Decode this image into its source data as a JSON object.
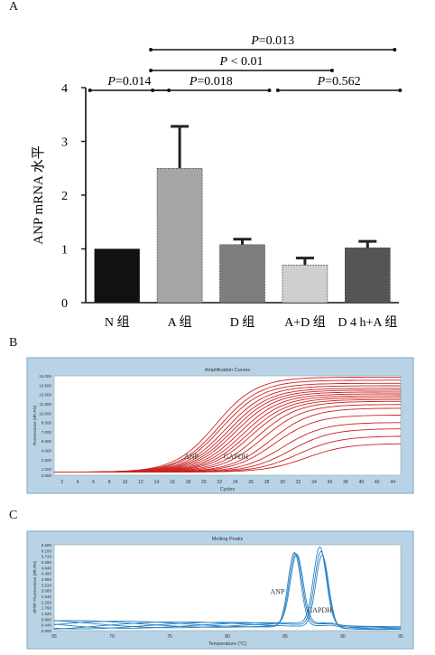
{
  "panels": {
    "a": "A",
    "b": "B",
    "c": "C"
  },
  "chart_data": [
    {
      "type": "bar",
      "ylabel": "ANP mRNA 水平",
      "xlabel": "",
      "title": "",
      "ylim": [
        0,
        4
      ],
      "yticks": [
        "0",
        "1",
        "2",
        "3",
        "4"
      ],
      "categories": [
        "N 组",
        "A 组",
        "D 组",
        "A+D 组",
        "D 4 h+A 组"
      ],
      "values": [
        1.0,
        2.5,
        1.08,
        0.7,
        1.02
      ],
      "errors": [
        0,
        0.78,
        0.1,
        0.13,
        0.12
      ],
      "colors": [
        "#111111",
        "#a6a6a6",
        "#7d7d7d",
        "#cfcfcf",
        "#555555"
      ],
      "comparisons": [
        {
          "pre": "P",
          "text": "=0.013",
          "from": 1,
          "to": 4
        },
        {
          "pre": "P",
          "text": " < 0.01",
          "from": 1,
          "to": 3
        },
        {
          "pre": "P",
          "text": "=0.014",
          "from": 0,
          "to": 1
        },
        {
          "pre": "P",
          "text": "=0.018",
          "from": 1,
          "to": 2
        },
        {
          "pre": "P",
          "text": "=0.562",
          "from": 3,
          "to": 4
        }
      ]
    },
    {
      "type": "line",
      "title": "Amplification Curves",
      "xlabel": "Cycles",
      "ylabel": "Fluorescence (dR.RN)",
      "xlim": [
        1,
        45
      ],
      "ylim": [
        0,
        16000
      ],
      "xticks": [
        "2",
        "4",
        "6",
        "8",
        "10",
        "12",
        "14",
        "16",
        "18",
        "20",
        "22",
        "24",
        "26",
        "28",
        "30",
        "32",
        "34",
        "36",
        "38",
        "40",
        "42",
        "44"
      ],
      "yticks": [
        "0.000",
        "1.000",
        "2.500",
        "4.000",
        "5.500",
        "7.000",
        "8.500",
        "10.000",
        "11.500",
        "13.000",
        "14.500",
        "16.000"
      ],
      "annotations": [
        "ANP",
        "GAPDH"
      ],
      "series_color": "#cc2222",
      "curves": [
        {
          "mid": 21.5,
          "plateau": 15300
        },
        {
          "mid": 22.0,
          "plateau": 14800
        },
        {
          "mid": 22.3,
          "plateau": 14300
        },
        {
          "mid": 22.8,
          "plateau": 13900
        },
        {
          "mid": 23.2,
          "plateau": 13500
        },
        {
          "mid": 23.6,
          "plateau": 13200
        },
        {
          "mid": 24.0,
          "plateau": 12900
        },
        {
          "mid": 24.5,
          "plateau": 12600
        },
        {
          "mid": 25.0,
          "plateau": 12300
        },
        {
          "mid": 25.5,
          "plateau": 12000
        },
        {
          "mid": 26.0,
          "plateau": 11700
        },
        {
          "mid": 26.8,
          "plateau": 11400
        },
        {
          "mid": 27.5,
          "plateau": 10900
        },
        {
          "mid": 28.5,
          "plateau": 10300
        },
        {
          "mid": 29.0,
          "plateau": 9200
        },
        {
          "mid": 30.0,
          "plateau": 8000
        },
        {
          "mid": 31.0,
          "plateau": 7000
        },
        {
          "mid": 32.0,
          "plateau": 5800
        },
        {
          "mid": 33.0,
          "plateau": 4600
        }
      ]
    },
    {
      "type": "line",
      "title": "Melting Peaks",
      "xlabel": "Temperature (°C)",
      "ylabel": "-dF/dT Fluorescence (dR.RN)",
      "xlim": [
        65,
        95
      ],
      "ylim": [
        0,
        6.6
      ],
      "xticks": [
        "65",
        "70",
        "75",
        "80",
        "85",
        "90",
        "95"
      ],
      "yticks": [
        "0.000",
        "0.440",
        "0.880",
        "1.320",
        "1.760",
        "2.200",
        "2.640",
        "3.080",
        "3.520",
        "3.960",
        "4.400",
        "4.840",
        "5.280",
        "5.720",
        "6.160",
        "6.600"
      ],
      "annotations": [
        "ANP",
        "GAPDH"
      ],
      "series_color": "#2a82c4",
      "peaks": [
        {
          "center": 85.8,
          "height": 5.7
        },
        {
          "center": 85.9,
          "height": 5.5
        },
        {
          "center": 86.0,
          "height": 5.3
        },
        {
          "center": 88.0,
          "height": 5.9
        },
        {
          "center": 88.1,
          "height": 5.7
        },
        {
          "center": 88.2,
          "height": 5.5
        }
      ]
    }
  ]
}
